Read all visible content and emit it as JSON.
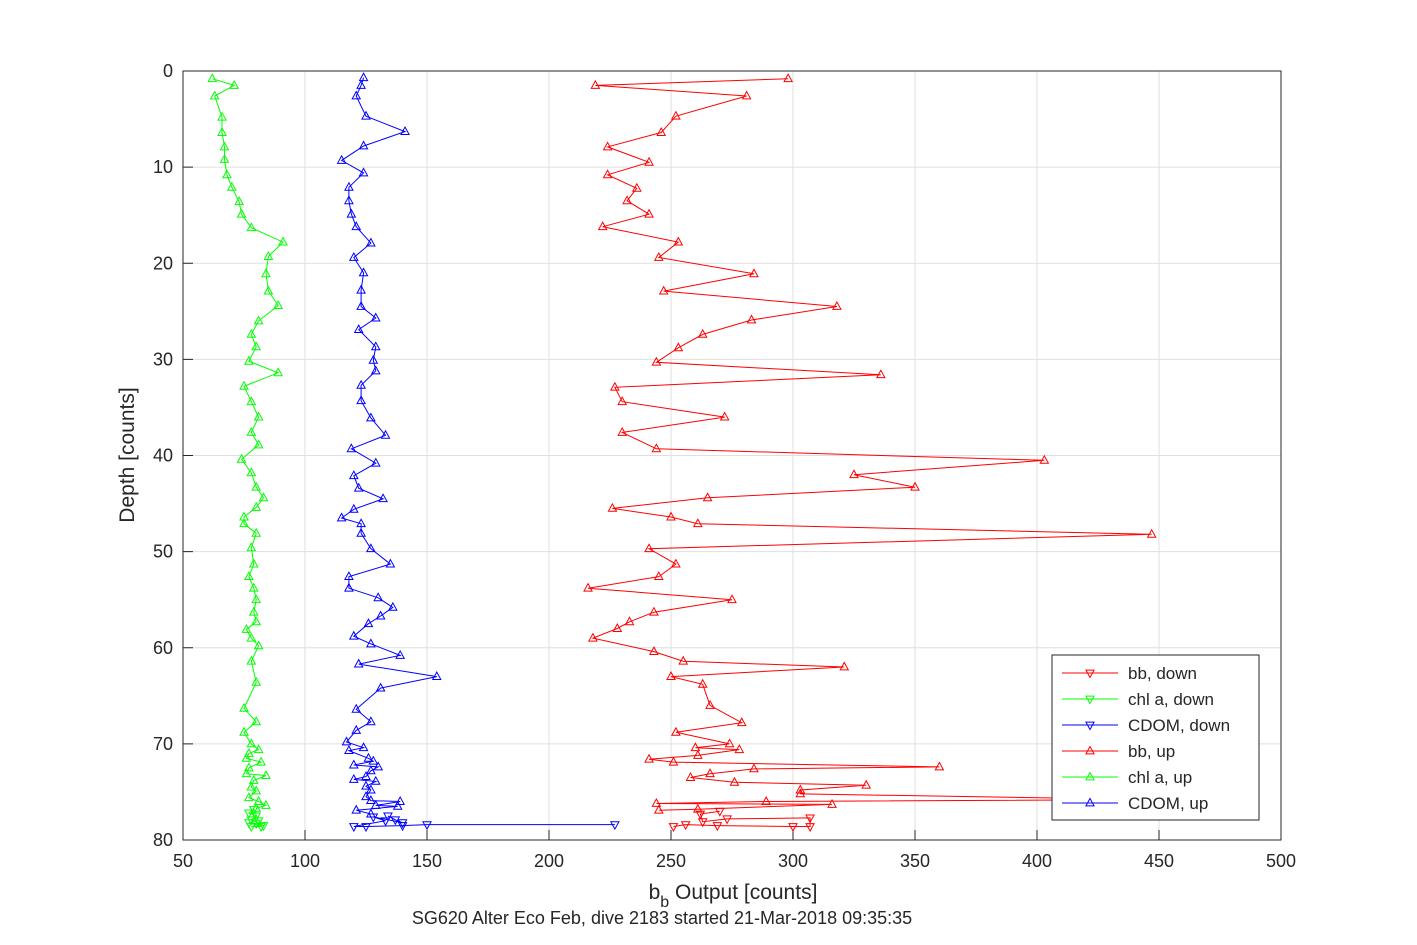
{
  "chart_data": {
    "type": "line",
    "title": "",
    "footer": "SG620 Alter Eco Feb, dive 2183 started 21-Mar-2018 09:35:35",
    "xlabel": {
      "base": "b",
      "sub": "b",
      "rest": " Output [counts]"
    },
    "ylabel": "Depth [counts]",
    "xlim": [
      50,
      500
    ],
    "ylim": [
      0,
      80
    ],
    "y_reversed": true,
    "grid": true,
    "legend_placement": "bottom-right",
    "xticks": [
      "50",
      "100",
      "150",
      "200",
      "250",
      "300",
      "350",
      "400",
      "450",
      "500"
    ],
    "yticks": [
      "0",
      "10",
      "20",
      "30",
      "40",
      "50",
      "60",
      "70",
      "80"
    ],
    "colors": {
      "bb": "#ff0000",
      "chl": "#00ff00",
      "cdom": "#0000ff"
    },
    "series": [
      {
        "name": "bb, down",
        "color": "#ff0000",
        "marker": "triangle-down",
        "points": [
          [
            251,
            78.6
          ],
          [
            256,
            78.4
          ],
          [
            269,
            78.5
          ],
          [
            300,
            78.6
          ],
          [
            307,
            78.6
          ],
          [
            307,
            77.7
          ],
          [
            273,
            77.8
          ],
          [
            263,
            78.1
          ],
          [
            262,
            77.3
          ],
          [
            270,
            77.0
          ]
        ]
      },
      {
        "name": "chl a, down",
        "color": "#00ff00",
        "marker": "triangle-down",
        "points": [
          [
            78,
            78.6
          ],
          [
            82,
            78.6
          ],
          [
            77,
            78.2
          ],
          [
            80,
            78.3
          ],
          [
            83,
            78.5
          ],
          [
            78,
            77.9
          ],
          [
            80,
            77.5
          ],
          [
            77,
            77.2
          ],
          [
            79,
            76.8
          ],
          [
            81,
            78.0
          ]
        ]
      },
      {
        "name": "CDOM, down",
        "color": "#0000ff",
        "marker": "triangle-down",
        "points": [
          [
            227,
            78.4
          ],
          [
            150,
            78.4
          ],
          [
            140,
            78.5
          ],
          [
            125,
            78.6
          ],
          [
            120,
            78.6
          ],
          [
            133,
            78.0
          ],
          [
            128,
            77.6
          ],
          [
            140,
            78.2
          ],
          [
            137,
            77.9
          ],
          [
            134,
            77.5
          ]
        ]
      },
      {
        "name": "bb, up",
        "color": "#ff0000",
        "marker": "triangle-up",
        "points": [
          [
            298,
            0.8
          ],
          [
            219,
            1.5
          ],
          [
            281,
            2.6
          ],
          [
            252,
            4.7
          ],
          [
            246,
            6.4
          ],
          [
            224,
            7.9
          ],
          [
            241,
            9.5
          ],
          [
            224,
            10.8
          ],
          [
            236,
            12.2
          ],
          [
            232,
            13.5
          ],
          [
            241,
            14.9
          ],
          [
            222,
            16.2
          ],
          [
            253,
            17.8
          ],
          [
            245,
            19.4
          ],
          [
            284,
            21.1
          ],
          [
            247,
            22.9
          ],
          [
            318,
            24.5
          ],
          [
            283,
            25.9
          ],
          [
            263,
            27.4
          ],
          [
            253,
            28.8
          ],
          [
            244,
            30.3
          ],
          [
            336,
            31.6
          ],
          [
            227,
            32.9
          ],
          [
            230,
            34.4
          ],
          [
            272,
            36.0
          ],
          [
            230,
            37.6
          ],
          [
            244,
            39.3
          ],
          [
            403,
            40.5
          ],
          [
            325,
            42.0
          ],
          [
            350,
            43.3
          ],
          [
            265,
            44.4
          ],
          [
            226,
            45.5
          ],
          [
            250,
            46.4
          ],
          [
            261,
            47.1
          ],
          [
            447,
            48.2
          ],
          [
            241,
            49.7
          ],
          [
            252,
            51.3
          ],
          [
            245,
            52.6
          ],
          [
            216,
            53.8
          ],
          [
            275,
            55.0
          ],
          [
            243,
            56.3
          ],
          [
            233,
            57.3
          ],
          [
            228,
            58.0
          ],
          [
            218,
            59.0
          ],
          [
            243,
            60.4
          ],
          [
            255,
            61.4
          ],
          [
            321,
            62.0
          ],
          [
            250,
            63.0
          ],
          [
            263,
            63.8
          ],
          [
            266,
            66.0
          ],
          [
            279,
            67.8
          ],
          [
            252,
            68.8
          ],
          [
            274,
            70.0
          ],
          [
            260,
            70.4
          ],
          [
            278,
            70.6
          ],
          [
            261,
            71.2
          ],
          [
            241,
            71.6
          ],
          [
            251,
            71.9
          ],
          [
            360,
            72.4
          ],
          [
            284,
            72.6
          ],
          [
            266,
            73.1
          ],
          [
            258,
            73.5
          ],
          [
            276,
            74.0
          ],
          [
            330,
            74.3
          ],
          [
            303,
            74.8
          ],
          [
            303,
            75.2
          ],
          [
            450,
            75.8
          ],
          [
            289,
            76.0
          ],
          [
            244,
            76.2
          ],
          [
            316,
            76.3
          ],
          [
            261,
            76.8
          ],
          [
            245,
            76.9
          ]
        ]
      },
      {
        "name": "chl a, up",
        "color": "#00ff00",
        "marker": "triangle-up",
        "points": [
          [
            62,
            0.8
          ],
          [
            71,
            1.5
          ],
          [
            63,
            2.6
          ],
          [
            66,
            4.8
          ],
          [
            66,
            6.4
          ],
          [
            67,
            7.9
          ],
          [
            67,
            9.2
          ],
          [
            68,
            10.8
          ],
          [
            70,
            12.1
          ],
          [
            73,
            13.6
          ],
          [
            74,
            14.9
          ],
          [
            78,
            16.3
          ],
          [
            91,
            17.8
          ],
          [
            85,
            19.3
          ],
          [
            84,
            21.1
          ],
          [
            85,
            22.9
          ],
          [
            89,
            24.4
          ],
          [
            81,
            26.0
          ],
          [
            78,
            27.4
          ],
          [
            80,
            28.7
          ],
          [
            77,
            30.2
          ],
          [
            89,
            31.4
          ],
          [
            75,
            32.8
          ],
          [
            78,
            34.4
          ],
          [
            81,
            36.0
          ],
          [
            78,
            37.6
          ],
          [
            81,
            38.9
          ],
          [
            74,
            40.4
          ],
          [
            78,
            41.8
          ],
          [
            80,
            43.3
          ],
          [
            83,
            44.4
          ],
          [
            80,
            45.4
          ],
          [
            75,
            46.4
          ],
          [
            75,
            47.1
          ],
          [
            80,
            48.1
          ],
          [
            78,
            49.6
          ],
          [
            79,
            51.3
          ],
          [
            77,
            52.6
          ],
          [
            79,
            53.8
          ],
          [
            80,
            55.0
          ],
          [
            79,
            56.3
          ],
          [
            80,
            57.3
          ],
          [
            76,
            58.1
          ],
          [
            78,
            59.0
          ],
          [
            81,
            59.8
          ],
          [
            78,
            61.4
          ],
          [
            80,
            63.6
          ],
          [
            75,
            66.3
          ],
          [
            80,
            67.7
          ],
          [
            75,
            68.8
          ],
          [
            78,
            70.0
          ],
          [
            81,
            70.6
          ],
          [
            77,
            71.0
          ],
          [
            76,
            71.5
          ],
          [
            82,
            71.9
          ],
          [
            77,
            72.5
          ],
          [
            76,
            73.1
          ],
          [
            84,
            73.3
          ],
          [
            79,
            73.8
          ],
          [
            78,
            74.5
          ],
          [
            80,
            74.9
          ],
          [
            77,
            75.6
          ],
          [
            81,
            76.0
          ],
          [
            84,
            76.4
          ],
          [
            80,
            76.7
          ]
        ]
      },
      {
        "name": "CDOM, up",
        "color": "#0000ff",
        "marker": "triangle-up",
        "points": [
          [
            124,
            0.7
          ],
          [
            123,
            1.5
          ],
          [
            121,
            2.6
          ],
          [
            125,
            4.7
          ],
          [
            141,
            6.3
          ],
          [
            124,
            7.8
          ],
          [
            115,
            9.3
          ],
          [
            124,
            10.6
          ],
          [
            118,
            12.1
          ],
          [
            118,
            13.5
          ],
          [
            119,
            14.9
          ],
          [
            121,
            16.2
          ],
          [
            127,
            17.9
          ],
          [
            120,
            19.4
          ],
          [
            124,
            21.0
          ],
          [
            123,
            22.8
          ],
          [
            123,
            24.5
          ],
          [
            129,
            25.7
          ],
          [
            122,
            26.9
          ],
          [
            129,
            28.7
          ],
          [
            128,
            30.1
          ],
          [
            129,
            31.2
          ],
          [
            123,
            32.7
          ],
          [
            123,
            34.3
          ],
          [
            127,
            36.1
          ],
          [
            133,
            37.9
          ],
          [
            119,
            39.3
          ],
          [
            129,
            40.8
          ],
          [
            120,
            42.1
          ],
          [
            122,
            43.4
          ],
          [
            132,
            44.5
          ],
          [
            120,
            45.6
          ],
          [
            115,
            46.5
          ],
          [
            123,
            47.1
          ],
          [
            123,
            48.1
          ],
          [
            127,
            49.7
          ],
          [
            135,
            51.3
          ],
          [
            118,
            52.6
          ],
          [
            118,
            53.8
          ],
          [
            130,
            54.8
          ],
          [
            136,
            55.8
          ],
          [
            131,
            56.7
          ],
          [
            126,
            57.5
          ],
          [
            120,
            58.8
          ],
          [
            127,
            59.6
          ],
          [
            139,
            60.8
          ],
          [
            122,
            61.7
          ],
          [
            154,
            63.0
          ],
          [
            131,
            64.2
          ],
          [
            121,
            66.4
          ],
          [
            127,
            67.7
          ],
          [
            121,
            68.6
          ],
          [
            117,
            69.8
          ],
          [
            124,
            70.4
          ],
          [
            118,
            70.7
          ],
          [
            126,
            71.5
          ],
          [
            128,
            71.8
          ],
          [
            120,
            72.2
          ],
          [
            130,
            72.4
          ],
          [
            127,
            72.8
          ],
          [
            125,
            73.4
          ],
          [
            120,
            73.7
          ],
          [
            129,
            73.9
          ],
          [
            125,
            74.4
          ],
          [
            127,
            74.8
          ],
          [
            125,
            75.5
          ],
          [
            127,
            75.9
          ],
          [
            139,
            76.0
          ],
          [
            129,
            76.4
          ],
          [
            138,
            76.5
          ],
          [
            121,
            76.9
          ],
          [
            127,
            77.3
          ]
        ]
      }
    ]
  }
}
